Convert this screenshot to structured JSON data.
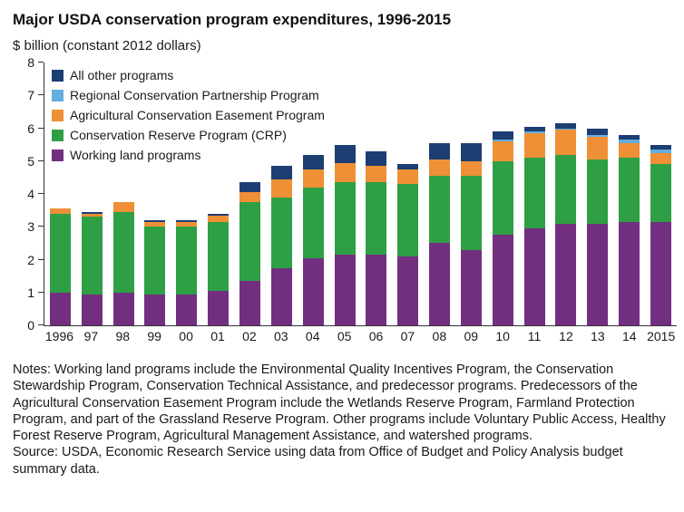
{
  "page": {
    "title": "Major USDA conservation program expenditures, 1996-2015",
    "subtitle": "$ billion (constant 2012 dollars)"
  },
  "notes": "Notes: Working land programs include the Environmental Quality Incentives Program, the Conservation Stewardship Program, Conservation Technical Assistance, and predecessor programs. Predecessors of the Agricultural Conservation Easement Program include the Wetlands Reserve Program, Farmland Protection Program, and part of the Grassland Reserve Program. Other programs include Voluntary Public Access, Healthy Forest Reserve Program, Agricultural Management Assistance, and watershed programs.",
  "source": "Source: USDA, Economic Research Service using data from Office of Budget and Policy Analysis budget summary data.",
  "colors": {
    "all_other_programs": "#1c3e73",
    "rcpp": "#62aedd",
    "acep": "#ef9036",
    "crp": "#2e9f45",
    "working_land": "#722f80",
    "axis": "#333333",
    "text": "#1a1a1a"
  },
  "chart_data": {
    "type": "bar",
    "stacked": true,
    "title": "Major USDA conservation program expenditures, 1996-2015",
    "ylabel": "$ billion (constant 2012 dollars)",
    "xlabel": "",
    "ylim": [
      0,
      8
    ],
    "yticks": [
      0,
      1,
      2,
      3,
      4,
      5,
      6,
      7,
      8
    ],
    "grid": false,
    "legend_position": "top-left-inside",
    "categories": [
      "1996",
      "97",
      "98",
      "99",
      "00",
      "01",
      "02",
      "03",
      "04",
      "05",
      "06",
      "07",
      "08",
      "09",
      "10",
      "11",
      "12",
      "13",
      "14",
      "2015"
    ],
    "series": [
      {
        "name": "Working land programs",
        "color": "#722f80",
        "values": [
          1.0,
          0.95,
          1.0,
          0.95,
          0.95,
          1.05,
          1.35,
          1.75,
          2.05,
          2.15,
          2.15,
          2.1,
          2.5,
          2.3,
          2.75,
          2.95,
          3.1,
          3.1,
          3.15,
          3.15
        ]
      },
      {
        "name": "Conservation Reserve Program (CRP)",
        "color": "#2e9f45",
        "values": [
          2.4,
          2.35,
          2.45,
          2.05,
          2.05,
          2.1,
          2.4,
          2.15,
          2.15,
          2.2,
          2.2,
          2.2,
          2.05,
          2.25,
          2.25,
          2.15,
          2.1,
          1.95,
          1.95,
          1.75
        ]
      },
      {
        "name": "Agricultural Conservation Easement Program",
        "color": "#ef9036",
        "values": [
          0.15,
          0.1,
          0.3,
          0.15,
          0.15,
          0.2,
          0.3,
          0.55,
          0.55,
          0.6,
          0.5,
          0.45,
          0.5,
          0.45,
          0.6,
          0.75,
          0.75,
          0.7,
          0.45,
          0.35
        ]
      },
      {
        "name": "Regional Conservation Partnership Program",
        "color": "#62aedd",
        "values": [
          0,
          0,
          0,
          0,
          0,
          0,
          0,
          0,
          0,
          0,
          0,
          0,
          0,
          0,
          0.05,
          0.05,
          0.05,
          0.05,
          0.1,
          0.1
        ]
      },
      {
        "name": "All other programs",
        "color": "#1c3e73",
        "values": [
          0,
          0.05,
          0,
          0.05,
          0.05,
          0.05,
          0.3,
          0.4,
          0.45,
          0.55,
          0.45,
          0.15,
          0.5,
          0.55,
          0.25,
          0.15,
          0.15,
          0.2,
          0.15,
          0.15
        ]
      }
    ]
  }
}
